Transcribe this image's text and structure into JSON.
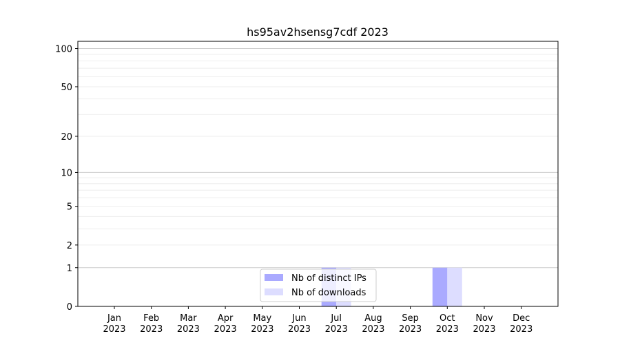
{
  "chart_data": {
    "type": "bar",
    "title": "hs95av2hsensg7cdf 2023",
    "xlabel": "",
    "ylabel": "",
    "y_scale": "log(1+y)",
    "ylim": [
      0,
      114
    ],
    "y_ticks": [
      0,
      1,
      2,
      5,
      10,
      20,
      50,
      100
    ],
    "grid": true,
    "legend_position": "lower-center",
    "categories": [
      "Jan\n2023",
      "Feb\n2023",
      "Mar\n2023",
      "Apr\n2023",
      "May\n2023",
      "Jun\n2023",
      "Jul\n2023",
      "Aug\n2023",
      "Sep\n2023",
      "Oct\n2023",
      "Nov\n2023",
      "Dec\n2023"
    ],
    "series": [
      {
        "name": "Nb of distinct IPs",
        "color": "#aaaaff",
        "values": [
          0,
          0,
          0,
          0,
          0,
          0,
          1,
          0,
          0,
          1,
          0,
          0
        ]
      },
      {
        "name": "Nb of downloads",
        "color": "#ddddff",
        "values": [
          0,
          0,
          0,
          0,
          0,
          0,
          1,
          0,
          0,
          1,
          0,
          0
        ]
      }
    ]
  }
}
